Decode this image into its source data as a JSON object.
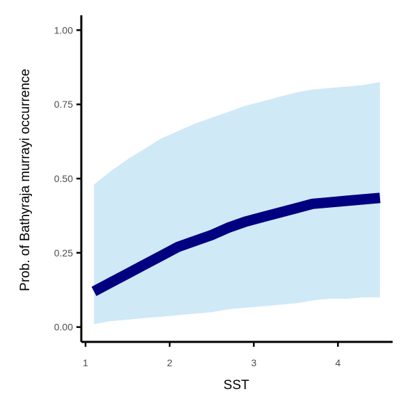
{
  "chart_data": {
    "type": "line",
    "xlabel": "SST",
    "ylabel": "Prob. of  Bathyraja murrayi  occurrence",
    "xlim": [
      0.95,
      4.65
    ],
    "ylim": [
      -0.05,
      1.05
    ],
    "x_ticks": [
      1,
      2,
      3,
      4
    ],
    "x_tick_labels": [
      "1",
      "2",
      "3",
      "4"
    ],
    "y_ticks": [
      0.0,
      0.25,
      0.5,
      0.75,
      1.0
    ],
    "y_tick_labels": [
      "0.00",
      "0.25",
      "0.50",
      "0.75",
      "1.00"
    ],
    "grid": false,
    "legend": "none",
    "series": [
      {
        "x": [
          1.1,
          1.3,
          1.5,
          1.7,
          1.9,
          2.1,
          2.3,
          2.5,
          2.7,
          2.9,
          3.1,
          3.3,
          3.5,
          3.7,
          3.9,
          4.1,
          4.3,
          4.5
        ],
        "y": [
          0.12,
          0.15,
          0.18,
          0.21,
          0.24,
          0.27,
          0.29,
          0.31,
          0.335,
          0.355,
          0.37,
          0.385,
          0.4,
          0.415,
          0.42,
          0.425,
          0.43,
          0.435
        ],
        "lower": [
          0.01,
          0.02,
          0.025,
          0.03,
          0.035,
          0.04,
          0.045,
          0.05,
          0.06,
          0.065,
          0.07,
          0.075,
          0.08,
          0.09,
          0.095,
          0.095,
          0.1,
          0.1
        ],
        "upper": [
          0.48,
          0.525,
          0.565,
          0.6,
          0.635,
          0.66,
          0.685,
          0.705,
          0.725,
          0.745,
          0.76,
          0.775,
          0.79,
          0.8,
          0.805,
          0.81,
          0.815,
          0.825
        ]
      }
    ],
    "colors": {
      "line": "#000080",
      "ribbon": "#cfe9f6",
      "axis": "#000000",
      "tick_text": "#4d4d4d"
    }
  }
}
